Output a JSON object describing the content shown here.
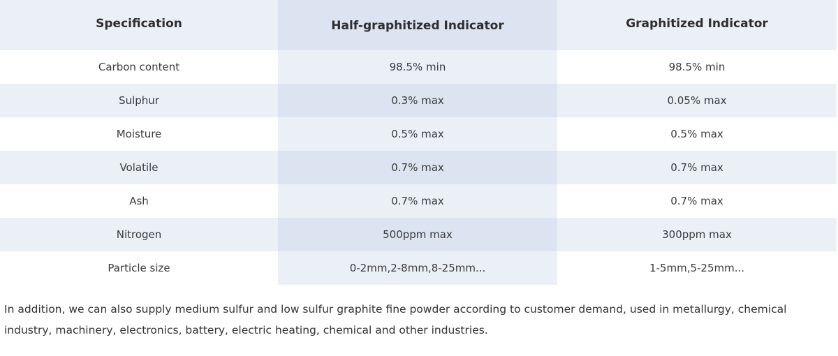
{
  "table": {
    "headers": [
      "Specification",
      "Half-graphitized Indicator",
      "Graphitized Indicator"
    ],
    "rows": [
      [
        "Carbon content",
        "98.5% min",
        "98.5% min"
      ],
      [
        "Sulphur",
        "0.3% max",
        "0.05% max"
      ],
      [
        "Moisture",
        "0.5% max",
        "0.5% max"
      ],
      [
        "Volatile",
        "0.7% max",
        "0.7% max"
      ],
      [
        "Ash",
        "0.7% max",
        "0.7% max"
      ],
      [
        "Nitrogen",
        "500ppm max",
        "300ppm max"
      ],
      [
        "Particle size",
        "0-2mm,2-8mm,8-25mm...",
        "1-5mm,5-25mm..."
      ]
    ]
  },
  "note": "In addition, we can also supply medium sulfur and low sulfur graphite fine powder according to customer demand, used in metallurgy, chemical industry, machinery, electronics, battery, electric heating, chemical and other industries.",
  "colors": {
    "header_bg": "#ebf0f7",
    "highlight_column_bg": "#dbe4f0",
    "row_alt_bg": "#ebf0f7",
    "text": "#333333"
  }
}
